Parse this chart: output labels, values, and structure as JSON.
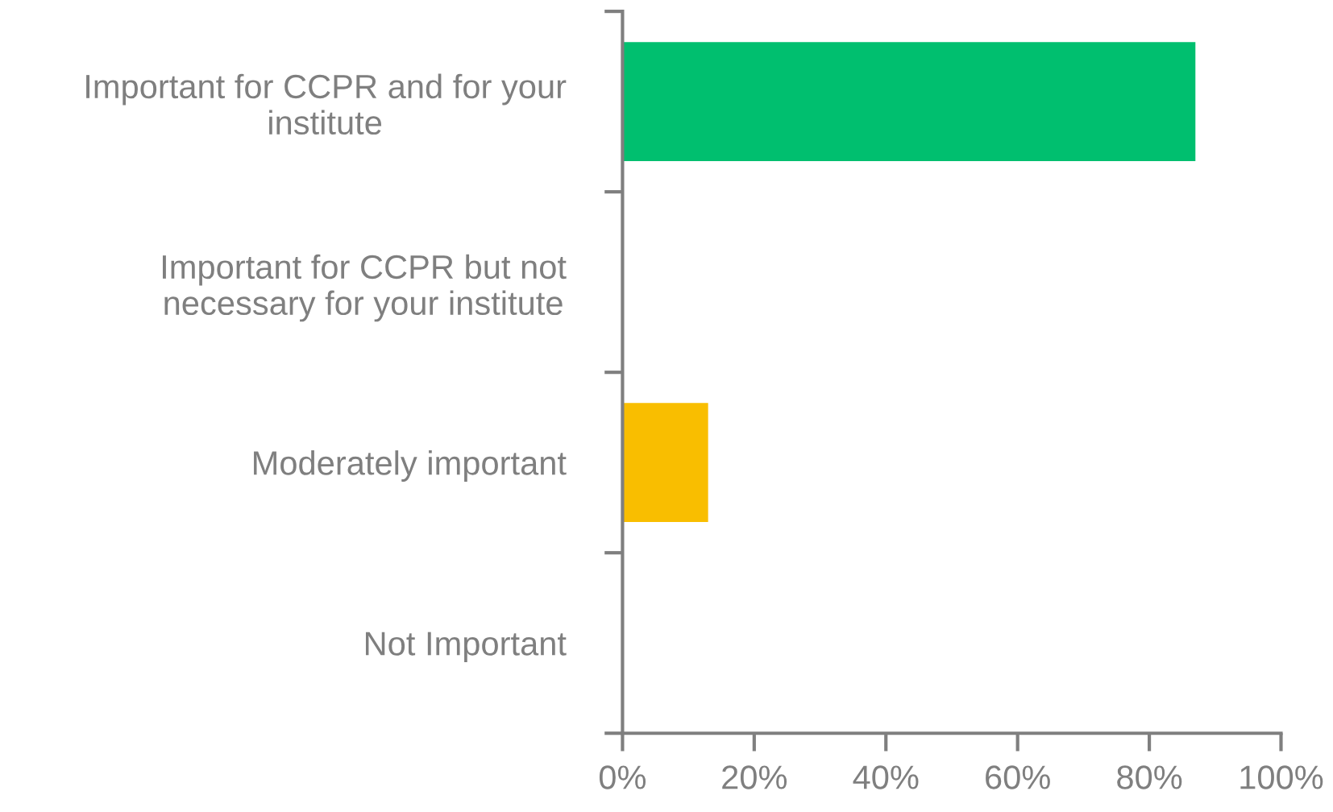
{
  "chart_data": {
    "type": "bar",
    "orientation": "horizontal",
    "categories": [
      "Important for CCPR and for your\ninstitute",
      "Important for CCPR but not\nnecessary for your institute",
      "Moderately important",
      "Not Important"
    ],
    "values": [
      87,
      0,
      13,
      0
    ],
    "colors": [
      "#00bf6f",
      "#00bf6f",
      "#f9be00",
      "#f9be00"
    ],
    "xlim": [
      0,
      100
    ],
    "xticks": [
      {
        "value": 0,
        "label": "0%"
      },
      {
        "value": 20,
        "label": "20%"
      },
      {
        "value": 40,
        "label": "40%"
      },
      {
        "value": 60,
        "label": "60%"
      },
      {
        "value": 80,
        "label": "80%"
      },
      {
        "value": 100,
        "label": "100%"
      }
    ],
    "grid": false,
    "legend": false
  }
}
